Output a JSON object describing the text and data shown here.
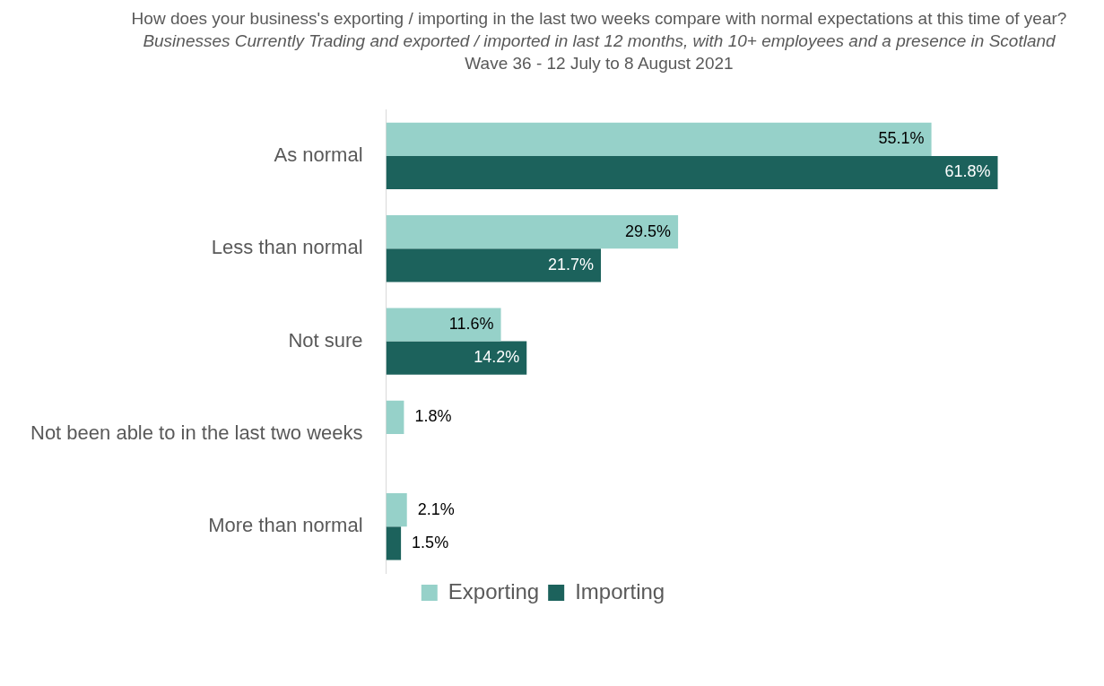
{
  "chart_data": {
    "type": "bar",
    "orientation": "horizontal",
    "title": "How does your business's exporting / importing in the last two weeks compare with normal expectations at this time of year?",
    "subtitle": "Businesses  Currently Trading and exported / imported in last 12 months, with 10+ employees and a presence in Scotland",
    "annotations": [
      "Wave 36 - 12 July to 8 August 2021"
    ],
    "categories": [
      "As normal",
      "Less than normal",
      "Not sure",
      "Not been able to in the last two weeks",
      "More than normal"
    ],
    "series": [
      {
        "name": "Exporting",
        "color": "#96d1c9",
        "values": [
          55.1,
          29.5,
          11.6,
          1.8,
          2.1
        ],
        "value_labels": [
          "55.1%",
          "29.5%",
          "11.6%",
          "1.8%",
          "2.1%"
        ]
      },
      {
        "name": "Importing",
        "color": "#1c625c",
        "values": [
          61.8,
          21.7,
          14.2,
          null,
          1.5
        ],
        "value_labels": [
          "61.8%",
          "21.7%",
          "14.2%",
          null,
          "1.5%"
        ]
      }
    ],
    "legend": "bottom",
    "grid": false
  }
}
